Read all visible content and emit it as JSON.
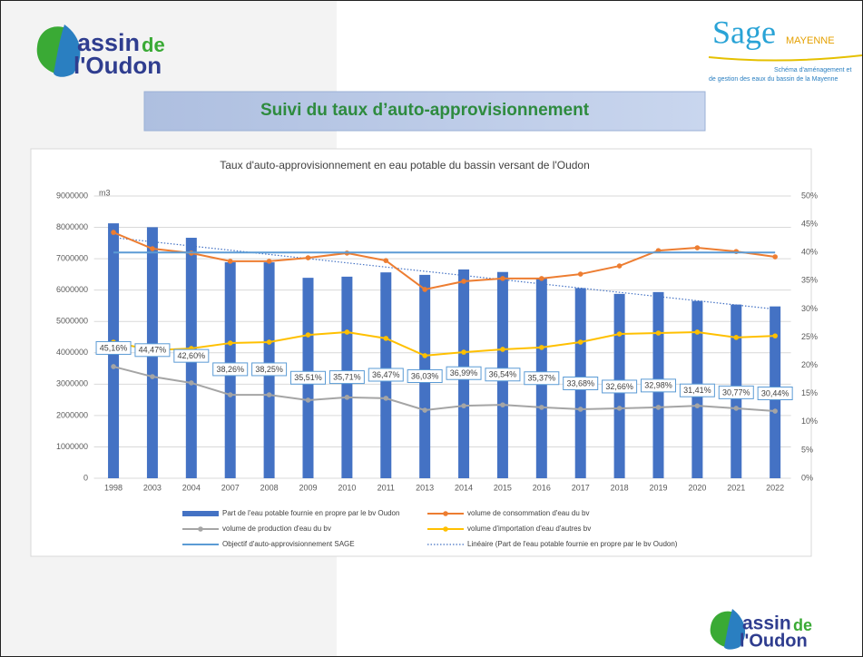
{
  "header": {
    "logo_top": {
      "word": "assin",
      "de": "de",
      "place": "l'Oudon"
    },
    "sage": {
      "name": "Sage",
      "region": "MAYENNE",
      "line1": "Schéma d'aménagement et",
      "line2": "de gestion des eaux du bassin de la Mayenne"
    },
    "banner": "Suivi du taux d’auto-approvisionnement",
    "logo_bottom": {
      "word": "assin",
      "de": "de",
      "place": "l'Oudon"
    }
  },
  "chart_data": {
    "type": "combo",
    "title": "Taux d'auto-approvisionnement  en eau potable du bassin versant de l'Oudon",
    "y_label": "m3",
    "categories": [
      "1998",
      "2003",
      "2004",
      "2007",
      "2008",
      "2009",
      "2010",
      "2011",
      "2013",
      "2014",
      "2015",
      "2016",
      "2017",
      "2018",
      "2019",
      "2020",
      "2021",
      "2022"
    ],
    "ylim": [
      0,
      9000000
    ],
    "yticks": [
      0,
      1000000,
      2000000,
      3000000,
      4000000,
      5000000,
      6000000,
      7000000,
      8000000,
      9000000
    ],
    "y2lim": [
      0,
      50
    ],
    "y2ticks": [
      {
        "value": 0,
        "label": "0%"
      },
      {
        "value": 5,
        "label": "5%"
      },
      {
        "value": 10,
        "label": "10%"
      },
      {
        "value": 15,
        "label": "15%"
      },
      {
        "value": 20,
        "label": "20%"
      },
      {
        "value": 25,
        "label": "25%"
      },
      {
        "value": 30,
        "label": "30%"
      },
      {
        "value": 35,
        "label": "35%"
      },
      {
        "value": 40,
        "label": "40%"
      },
      {
        "value": 45,
        "label": "45%"
      },
      {
        "value": 50,
        "label": "50%"
      }
    ],
    "grid": true,
    "series": [
      {
        "name": "Part de l'eau potable fournie en propre par le bv Oudon",
        "type": "bar",
        "axis": "y2",
        "color": "#4472c4",
        "values": [
          45.16,
          44.47,
          42.6,
          38.26,
          38.25,
          35.51,
          35.71,
          36.47,
          36.03,
          36.99,
          36.54,
          35.37,
          33.68,
          32.66,
          32.98,
          31.41,
          30.77,
          30.44
        ],
        "value_labels": [
          "45,16%",
          "44,47%",
          "42,60%",
          "38,26%",
          "38,25%",
          "35,51%",
          "35,71%",
          "36,47%",
          "36,03%",
          "36,99%",
          "36,54%",
          "35,37%",
          "33,68%",
          "32,66%",
          "32,98%",
          "31,41%",
          "30,77%",
          "30,44%"
        ],
        "trendline": {
          "name": "Linéaire (Part de l'eau potable fournie en propre par le bv Oudon)",
          "style": "dotted"
        }
      },
      {
        "name": "volume de consommation d'eau du bv",
        "type": "line",
        "color": "#ed7d31",
        "marker": true,
        "values": [
          7840000,
          7320000,
          7180000,
          6920000,
          6920000,
          7030000,
          7180000,
          6940000,
          6020000,
          6280000,
          6370000,
          6370000,
          6510000,
          6770000,
          7260000,
          7350000,
          7230000,
          7060000
        ]
      },
      {
        "name": "volume de production d'eau du bv",
        "type": "line",
        "color": "#a5a5a5",
        "marker": true,
        "values": [
          3560000,
          3240000,
          3040000,
          2660000,
          2660000,
          2490000,
          2580000,
          2550000,
          2170000,
          2310000,
          2340000,
          2260000,
          2200000,
          2230000,
          2260000,
          2310000,
          2230000,
          2140000
        ]
      },
      {
        "name": "volume d'importation d'eau d'autres bv",
        "type": "line",
        "color": "#ffc000",
        "marker": true,
        "values": [
          4340000,
          4080000,
          4140000,
          4310000,
          4340000,
          4570000,
          4660000,
          4460000,
          3910000,
          4020000,
          4110000,
          4170000,
          4340000,
          4600000,
          4630000,
          4660000,
          4490000,
          4540000
        ]
      },
      {
        "name": "Objectif d'auto-approvisionnement SAGE",
        "type": "line",
        "axis": "y2",
        "color": "#5b9bd5",
        "marker": false,
        "values": [
          40,
          40,
          40,
          40,
          40,
          40,
          40,
          40,
          40,
          40,
          40,
          40,
          40,
          40,
          40,
          40,
          40,
          40
        ]
      }
    ]
  }
}
